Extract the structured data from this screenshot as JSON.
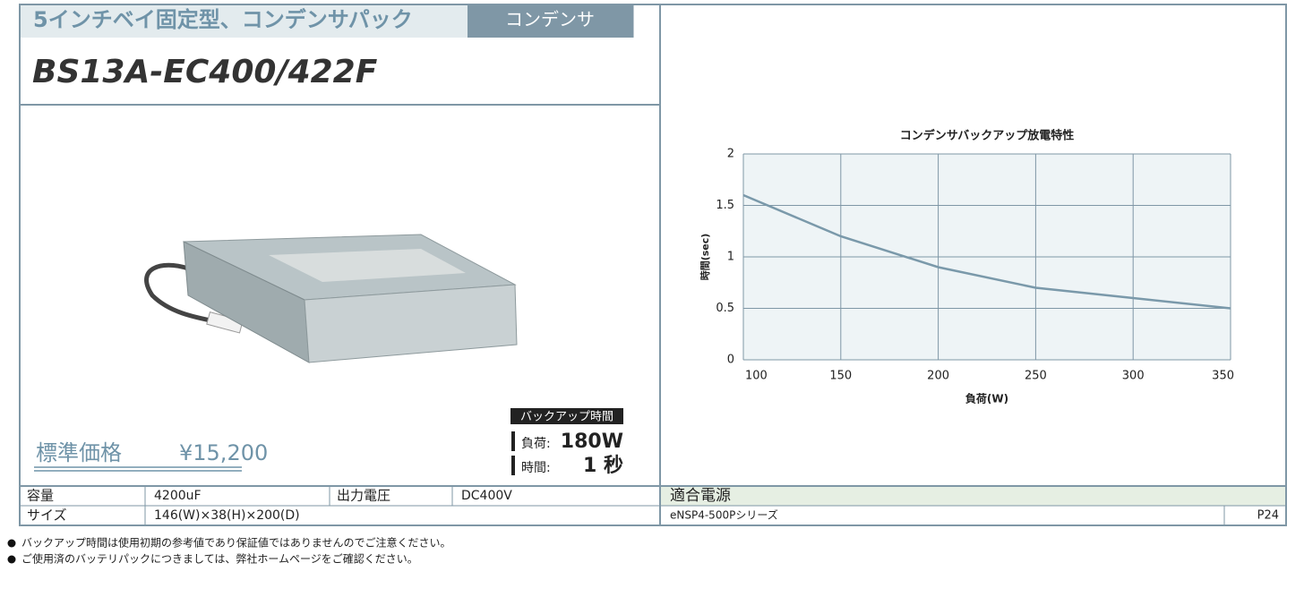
{
  "header": {
    "category": "5インチベイ固定型、コンデンサパック",
    "tab": "コンデンサ",
    "model": "BS13A-EC400/422F"
  },
  "price": {
    "label": "標準価格",
    "value": "¥15,200"
  },
  "backup": {
    "title": "バックアップ時間",
    "load_label": "負荷:",
    "load": "180W",
    "time_label": "時間:",
    "time": "1 秒"
  },
  "specs": {
    "rows": [
      [
        "容量",
        "4200uF",
        "出力電圧",
        "DC400V"
      ],
      [
        "サイズ",
        "146(W)×38(H)×200(D)"
      ]
    ]
  },
  "compatible": {
    "title": "適合電源",
    "rows": [
      [
        "eNSP4-500Pシリーズ",
        "P24"
      ]
    ]
  },
  "notes": [
    "バックアップ時間は使用初期の参考値であり保証値ではありませんのでご注意ください。",
    "ご使用済のバッテリパックにつきましては、弊社ホームページをご確認ください。"
  ],
  "chart_data": {
    "type": "line",
    "title": "コンデンサバックアップ放電特性",
    "x_label": "負荷(W)",
    "y_label": "時間(sec)",
    "x": [
      100,
      150,
      200,
      250,
      300,
      350
    ],
    "series": [
      {
        "color": "#7a99aa",
        "values": [
          1.6,
          1.2,
          0.9,
          0.7,
          0.6,
          0.5
        ]
      }
    ],
    "xlim": [
      100,
      350
    ],
    "ylim": [
      0,
      2
    ],
    "xticks": [
      100,
      150,
      200,
      250,
      300,
      350
    ],
    "yticks": [
      0,
      0.5,
      1,
      1.5,
      2
    ],
    "grid": true
  }
}
